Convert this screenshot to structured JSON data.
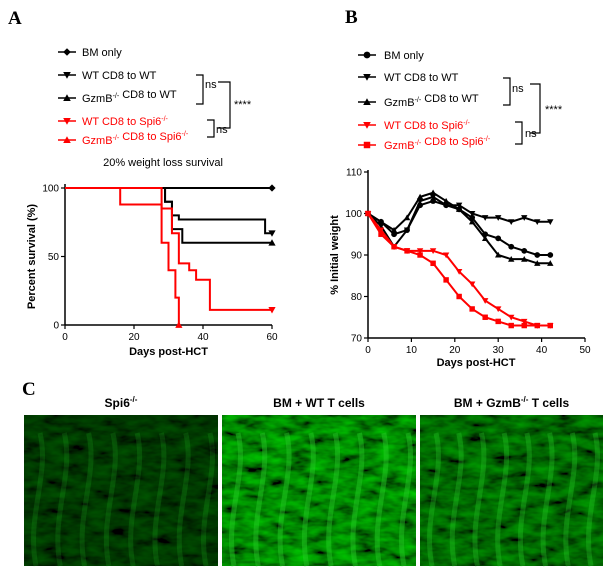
{
  "figure": {
    "panel_letters": [
      "A",
      "B",
      "C"
    ],
    "significance": {
      "ns_top": "ns",
      "ns_bottom": "ns",
      "stars": "****"
    }
  },
  "chart_data": [
    {
      "panel": "A",
      "type": "line",
      "step": true,
      "title": "20% weight loss survival",
      "xlabel": "Days post-HCT",
      "ylabel": "Percent survival (%)",
      "xlim": [
        0,
        60
      ],
      "ylim": [
        0,
        100
      ],
      "xticks": [
        0,
        20,
        40,
        60
      ],
      "yticks": [
        0,
        50,
        100
      ],
      "legend_position": "top",
      "series": [
        {
          "name": "BM only",
          "color": "#000000",
          "marker": "diamond",
          "x": [
            0,
            60
          ],
          "y": [
            100,
            100
          ]
        },
        {
          "name": "WT CD8 to WT",
          "color": "#000000",
          "marker": "triangle-down",
          "x": [
            0,
            29,
            31,
            33,
            58,
            60
          ],
          "y": [
            100,
            90,
            80,
            77,
            67,
            67
          ]
        },
        {
          "name": "GzmB-/- CD8 to WT",
          "color": "#000000",
          "marker": "triangle-up",
          "x": [
            0,
            29,
            31,
            34,
            60
          ],
          "y": [
            100,
            90,
            70,
            60,
            60
          ]
        },
        {
          "name": "WT CD8 to Spi6-/-",
          "color": "#ff0000",
          "marker": "triangle-down",
          "x": [
            0,
            16,
            28,
            31,
            33,
            36,
            38,
            42,
            60
          ],
          "y": [
            100,
            88,
            85,
            67,
            45,
            40,
            33,
            11,
            11
          ]
        },
        {
          "name": "GzmB-/- CD8 to Spi6-/-",
          "color": "#ff0000",
          "marker": "triangle-up",
          "x": [
            0,
            28,
            30,
            32,
            33
          ],
          "y": [
            100,
            60,
            40,
            20,
            0
          ]
        }
      ]
    },
    {
      "panel": "B",
      "type": "line",
      "xlabel": "Days post-HCT",
      "ylabel": "% Initial weight",
      "xlim": [
        0,
        50
      ],
      "ylim": [
        70,
        110
      ],
      "xticks": [
        0,
        10,
        20,
        30,
        40,
        50
      ],
      "yticks": [
        70,
        80,
        90,
        100,
        110
      ],
      "legend_position": "top",
      "series": [
        {
          "name": "BM only",
          "color": "#000000",
          "marker": "circle",
          "x": [
            0,
            3,
            6,
            9,
            12,
            15,
            18,
            21,
            24,
            27,
            30,
            33,
            36,
            39,
            42
          ],
          "y": [
            100,
            98,
            95,
            96,
            102,
            103,
            102,
            101,
            99,
            95,
            94,
            92,
            91,
            90,
            90
          ]
        },
        {
          "name": "WT CD8 to WT",
          "color": "#000000",
          "marker": "triangle-down",
          "x": [
            0,
            3,
            6,
            9,
            12,
            15,
            18,
            21,
            24,
            27,
            30,
            33,
            36,
            39,
            42
          ],
          "y": [
            100,
            97,
            92,
            96,
            103,
            104,
            102,
            102,
            100,
            99,
            99,
            98,
            99,
            98,
            98
          ]
        },
        {
          "name": "GzmB-/- CD8 to WT",
          "color": "#000000",
          "marker": "triangle-up",
          "x": [
            0,
            3,
            6,
            9,
            12,
            15,
            18,
            21,
            24,
            27,
            30,
            33,
            36,
            39,
            42
          ],
          "y": [
            100,
            98,
            96,
            99,
            104,
            105,
            103,
            101,
            98,
            94,
            90,
            89,
            89,
            88,
            88
          ]
        },
        {
          "name": "WT CD8 to Spi6-/-",
          "color": "#ff0000",
          "marker": "triangle-down",
          "x": [
            0,
            3,
            6,
            9,
            12,
            15,
            18,
            21,
            24,
            27,
            30,
            33,
            36,
            39,
            42
          ],
          "y": [
            100,
            96,
            92,
            91,
            91,
            91,
            90,
            86,
            83,
            79,
            77,
            75,
            74,
            73,
            73
          ]
        },
        {
          "name": "GzmB-/- CD8 to Spi6-/-",
          "color": "#ff0000",
          "marker": "square",
          "x": [
            0,
            3,
            6,
            9,
            12,
            15,
            18,
            21,
            24,
            27,
            30,
            33,
            36,
            39,
            42
          ],
          "y": [
            100,
            95,
            92,
            91,
            90,
            88,
            84,
            80,
            77,
            75,
            74,
            73,
            73,
            73,
            73
          ]
        }
      ]
    }
  ],
  "micrographs": [
    {
      "label": "Spi6-/-",
      "label_base": "Spi6",
      "label_sup": "-/-",
      "brightness": 0.35
    },
    {
      "label": "BM + WT T cells",
      "label_base": "BM + WT T cells",
      "label_sup": "",
      "brightness": 0.85
    },
    {
      "label": "BM + GzmB-/- T cells",
      "label_base": "BM + GzmB",
      "label_sup": "-/-",
      "label_tail": " T cells",
      "brightness": 0.65
    }
  ]
}
